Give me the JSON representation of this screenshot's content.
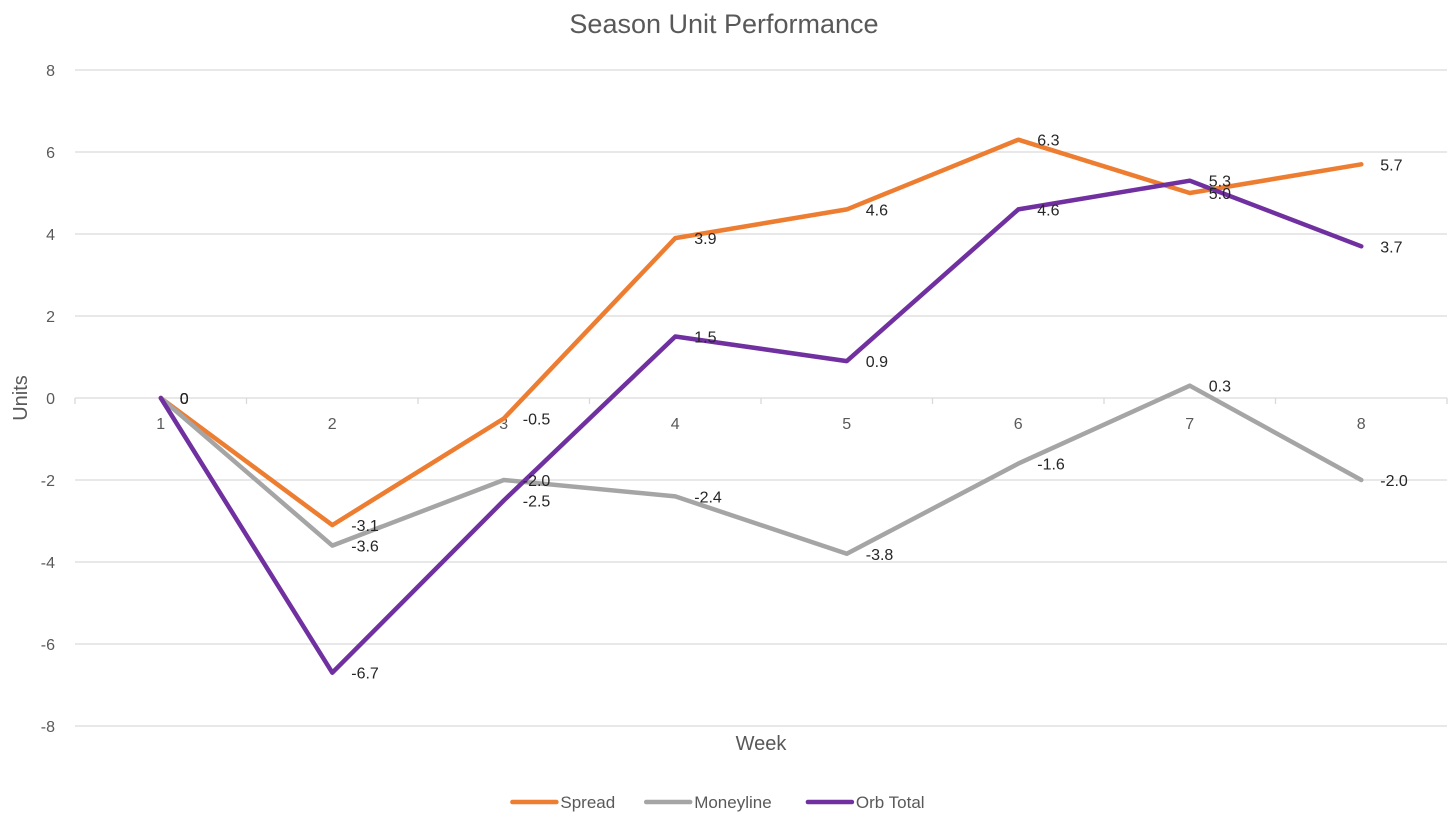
{
  "chart_data": {
    "type": "line",
    "title": "Season Unit Performance",
    "xlabel": "Week",
    "ylabel": "Units",
    "categories": [
      "1",
      "2",
      "3",
      "4",
      "5",
      "6",
      "7",
      "8"
    ],
    "ylim": [
      -8,
      8
    ],
    "yticks": [
      8,
      6,
      4,
      2,
      0,
      -2,
      -4,
      -6,
      -8
    ],
    "yticks_labels": [
      "8",
      "6",
      "4",
      "2",
      "0",
      "-2",
      "-4",
      "-6",
      "-8"
    ],
    "grid": true,
    "legend_position": "bottom",
    "series": [
      {
        "name": "Spread",
        "color": "#ED7D31",
        "values": [
          0,
          -3.1,
          -0.5,
          3.9,
          4.6,
          6.3,
          5.0,
          5.7
        ],
        "labels": [
          "0",
          "-3.1",
          "-0.5",
          "3.9",
          "4.6",
          "6.3",
          "5.0",
          "5.7"
        ]
      },
      {
        "name": "Moneyline",
        "color": "#A5A5A5",
        "values": [
          0,
          -3.6,
          -2.0,
          -2.4,
          -3.8,
          -1.6,
          0.3,
          -2.0
        ],
        "labels": [
          "0",
          "-3.6",
          "-2.0",
          "-2.4",
          "-3.8",
          "-1.6",
          "0.3",
          "-2.0"
        ]
      },
      {
        "name": "Orb Total",
        "color": "#7030A0",
        "values": [
          0,
          -6.7,
          -2.5,
          1.5,
          0.9,
          4.6,
          5.3,
          3.7
        ],
        "labels": [
          "0",
          "-6.7",
          "-2.5",
          "1.5",
          "0.9",
          "4.6",
          "5.3",
          "3.7"
        ]
      }
    ]
  }
}
